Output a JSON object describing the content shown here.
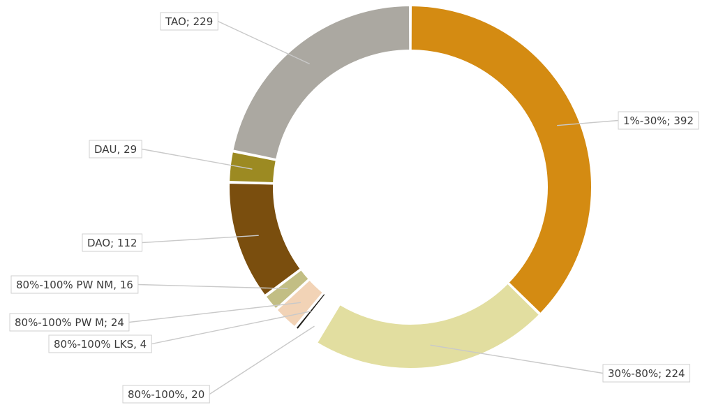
{
  "chart_data": {
    "type": "pie",
    "style": "donut",
    "title": "",
    "slices": [
      {
        "label": "1%-30%",
        "value": 392,
        "display": "1%-30%; 392",
        "color": "#D48B12"
      },
      {
        "label": "30%-80%",
        "value": 224,
        "display": "30%-80%; 224",
        "color": "#E2DEA0"
      },
      {
        "label": "80%-100%",
        "value": 20,
        "display": "80%-100%, 20",
        "color": "#FFFFFF",
        "exploded": true
      },
      {
        "label": "80%-100% LKS",
        "value": 4,
        "display": "80%-100% LKS, 4",
        "color": "#1E1B16"
      },
      {
        "label": "80%-100% PW M",
        "value": 24,
        "display": "80%-100% PW M; 24",
        "color": "#F2D3B6"
      },
      {
        "label": "80%-100% PW NM",
        "value": 16,
        "display": "80%-100% PW NM, 16",
        "color": "#C2BE84"
      },
      {
        "label": "DAO",
        "value": 112,
        "display": "DAO; 112",
        "color": "#7A4E0E"
      },
      {
        "label": "DAU",
        "value": 29,
        "display": "DAU, 29",
        "color": "#9C8A22"
      },
      {
        "label": "TAO",
        "value": 229,
        "display": "TAO; 229",
        "color": "#ABA8A1"
      }
    ],
    "legend": "none",
    "data_labels": "outside with leader lines"
  }
}
